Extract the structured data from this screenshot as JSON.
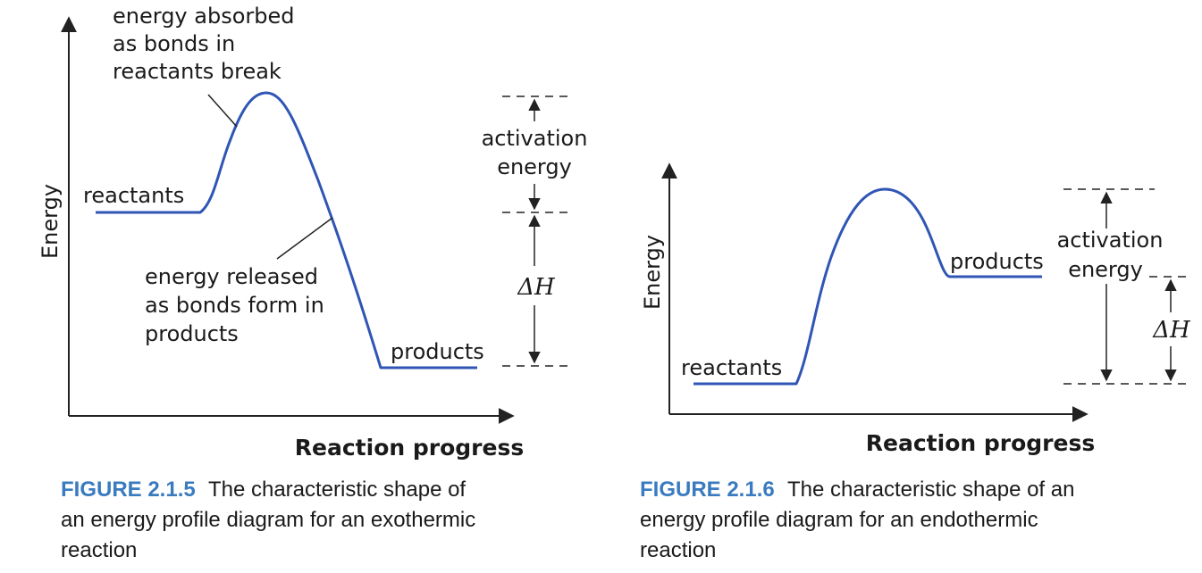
{
  "colors": {
    "curve": "#2f55b5",
    "axis": "#222222",
    "caption_number": "#3a7bbf"
  },
  "figures": [
    {
      "id": "exothermic",
      "y_axis_label": "Energy",
      "x_axis_label": "Reaction progress",
      "reactants_label": "reactants",
      "products_label": "products",
      "annotation_break": [
        "energy absorbed",
        "as bonds in",
        "reactants break"
      ],
      "annotation_form": [
        "energy released",
        "as bonds form in",
        "products"
      ],
      "activation_label": [
        "activation",
        "energy"
      ],
      "delta_h_label": "ΔH",
      "caption_number": "FIGURE 2.1.5",
      "caption_lines": [
        "The characteristic shape of",
        "an energy profile diagram for an exothermic",
        "reaction"
      ]
    },
    {
      "id": "endothermic",
      "y_axis_label": "Energy",
      "x_axis_label": "Reaction progress",
      "reactants_label": "reactants",
      "products_label": "products",
      "activation_label": [
        "activation",
        "energy"
      ],
      "delta_h_label": "ΔH",
      "caption_number": "FIGURE 2.1.6",
      "caption_lines": [
        "The characteristic shape of an",
        "energy profile diagram for an endothermic",
        "reaction"
      ]
    }
  ]
}
